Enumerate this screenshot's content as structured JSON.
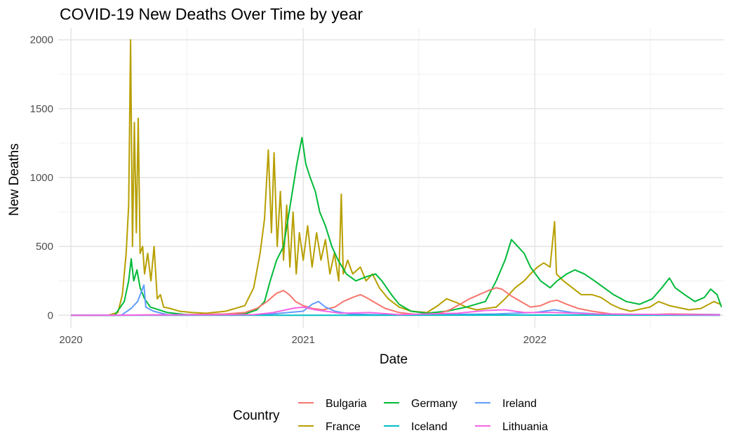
{
  "chart_data": {
    "type": "line",
    "title": "COVID-19 New Deaths Over Time by year",
    "xlabel": "Date",
    "ylabel": "New Deaths",
    "x_ticks": [
      "2020",
      "2021",
      "2022"
    ],
    "y_ticks": [
      "0",
      "500",
      "1000",
      "1500",
      "2000"
    ],
    "xlim": [
      "2019-12-12",
      "2022-10-25"
    ],
    "ylim": [
      -95,
      2085
    ],
    "grid": true,
    "legend_title": "Country",
    "legend_position": "bottom",
    "series": [
      {
        "name": "France",
        "color": "#B79F00",
        "points": [
          [
            "2020-01-01",
            0
          ],
          [
            "2020-02-28",
            0
          ],
          [
            "2020-03-15",
            20
          ],
          [
            "2020-03-22",
            150
          ],
          [
            "2020-03-28",
            450
          ],
          [
            "2020-04-01",
            800
          ],
          [
            "2020-04-04",
            2000
          ],
          [
            "2020-04-07",
            500
          ],
          [
            "2020-04-10",
            1400
          ],
          [
            "2020-04-13",
            600
          ],
          [
            "2020-04-16",
            1430
          ],
          [
            "2020-04-19",
            450
          ],
          [
            "2020-04-23",
            500
          ],
          [
            "2020-04-26",
            300
          ],
          [
            "2020-05-01",
            450
          ],
          [
            "2020-05-06",
            250
          ],
          [
            "2020-05-11",
            500
          ],
          [
            "2020-05-16",
            120
          ],
          [
            "2020-05-21",
            150
          ],
          [
            "2020-05-26",
            60
          ],
          [
            "2020-06-05",
            50
          ],
          [
            "2020-06-20",
            30
          ],
          [
            "2020-07-10",
            20
          ],
          [
            "2020-08-01",
            15
          ],
          [
            "2020-09-01",
            30
          ],
          [
            "2020-10-01",
            70
          ],
          [
            "2020-10-15",
            200
          ],
          [
            "2020-10-25",
            450
          ],
          [
            "2020-11-01",
            700
          ],
          [
            "2020-11-07",
            1200
          ],
          [
            "2020-11-12",
            600
          ],
          [
            "2020-11-16",
            1180
          ],
          [
            "2020-11-21",
            500
          ],
          [
            "2020-11-26",
            900
          ],
          [
            "2020-12-01",
            400
          ],
          [
            "2020-12-06",
            800
          ],
          [
            "2020-12-11",
            350
          ],
          [
            "2020-12-16",
            750
          ],
          [
            "2020-12-21",
            300
          ],
          [
            "2020-12-26",
            600
          ],
          [
            "2021-01-01",
            400
          ],
          [
            "2021-01-08",
            650
          ],
          [
            "2021-01-15",
            350
          ],
          [
            "2021-01-22",
            600
          ],
          [
            "2021-01-29",
            400
          ],
          [
            "2021-02-05",
            550
          ],
          [
            "2021-02-12",
            300
          ],
          [
            "2021-02-19",
            450
          ],
          [
            "2021-02-26",
            250
          ],
          [
            "2021-03-02",
            880
          ],
          [
            "2021-03-05",
            300
          ],
          [
            "2021-03-12",
            400
          ],
          [
            "2021-03-20",
            300
          ],
          [
            "2021-04-01",
            350
          ],
          [
            "2021-04-10",
            250
          ],
          [
            "2021-04-20",
            300
          ],
          [
            "2021-05-01",
            200
          ],
          [
            "2021-05-15",
            120
          ],
          [
            "2021-06-01",
            60
          ],
          [
            "2021-06-20",
            30
          ],
          [
            "2021-07-15",
            20
          ],
          [
            "2021-08-01",
            70
          ],
          [
            "2021-08-15",
            120
          ],
          [
            "2021-09-01",
            90
          ],
          [
            "2021-09-15",
            60
          ],
          [
            "2021-10-01",
            40
          ],
          [
            "2021-11-01",
            60
          ],
          [
            "2021-11-15",
            120
          ],
          [
            "2021-12-01",
            200
          ],
          [
            "2021-12-15",
            250
          ],
          [
            "2021-12-25",
            300
          ],
          [
            "2022-01-05",
            350
          ],
          [
            "2022-01-15",
            380
          ],
          [
            "2022-01-25",
            350
          ],
          [
            "2022-02-01",
            680
          ],
          [
            "2022-02-04",
            300
          ],
          [
            "2022-02-15",
            250
          ],
          [
            "2022-03-01",
            200
          ],
          [
            "2022-03-15",
            150
          ],
          [
            "2022-04-01",
            150
          ],
          [
            "2022-04-15",
            130
          ],
          [
            "2022-05-01",
            80
          ],
          [
            "2022-05-15",
            50
          ],
          [
            "2022-06-01",
            30
          ],
          [
            "2022-07-01",
            60
          ],
          [
            "2022-07-15",
            100
          ],
          [
            "2022-08-01",
            70
          ],
          [
            "2022-09-01",
            40
          ],
          [
            "2022-09-20",
            50
          ],
          [
            "2022-10-10",
            100
          ],
          [
            "2022-10-20",
            80
          ]
        ]
      },
      {
        "name": "Germany",
        "color": "#00BA38",
        "points": [
          [
            "2020-01-01",
            0
          ],
          [
            "2020-03-10",
            0
          ],
          [
            "2020-03-25",
            100
          ],
          [
            "2020-04-01",
            250
          ],
          [
            "2020-04-05",
            410
          ],
          [
            "2020-04-09",
            250
          ],
          [
            "2020-04-14",
            330
          ],
          [
            "2020-04-19",
            200
          ],
          [
            "2020-04-26",
            120
          ],
          [
            "2020-05-05",
            60
          ],
          [
            "2020-06-01",
            20
          ],
          [
            "2020-07-01",
            5
          ],
          [
            "2020-09-01",
            5
          ],
          [
            "2020-10-01",
            10
          ],
          [
            "2020-10-20",
            40
          ],
          [
            "2020-11-01",
            100
          ],
          [
            "2020-11-10",
            250
          ],
          [
            "2020-11-20",
            400
          ],
          [
            "2020-12-01",
            500
          ],
          [
            "2020-12-08",
            700
          ],
          [
            "2020-12-15",
            900
          ],
          [
            "2020-12-22",
            1100
          ],
          [
            "2020-12-30",
            1290
          ],
          [
            "2021-01-05",
            1100
          ],
          [
            "2021-01-12",
            1000
          ],
          [
            "2021-01-20",
            900
          ],
          [
            "2021-01-27",
            750
          ],
          [
            "2021-02-05",
            650
          ],
          [
            "2021-02-15",
            500
          ],
          [
            "2021-02-25",
            400
          ],
          [
            "2021-03-10",
            300
          ],
          [
            "2021-03-25",
            250
          ],
          [
            "2021-04-10",
            280
          ],
          [
            "2021-04-25",
            300
          ],
          [
            "2021-05-05",
            250
          ],
          [
            "2021-05-20",
            150
          ],
          [
            "2021-06-01",
            80
          ],
          [
            "2021-06-20",
            30
          ],
          [
            "2021-07-15",
            15
          ],
          [
            "2021-08-15",
            30
          ],
          [
            "2021-09-15",
            60
          ],
          [
            "2021-10-15",
            100
          ],
          [
            "2021-11-01",
            250
          ],
          [
            "2021-11-15",
            400
          ],
          [
            "2021-11-25",
            550
          ],
          [
            "2021-12-05",
            500
          ],
          [
            "2021-12-15",
            450
          ],
          [
            "2021-12-25",
            350
          ],
          [
            "2022-01-10",
            250
          ],
          [
            "2022-01-25",
            200
          ],
          [
            "2022-02-05",
            250
          ],
          [
            "2022-02-20",
            300
          ],
          [
            "2022-03-05",
            330
          ],
          [
            "2022-03-20",
            300
          ],
          [
            "2022-04-05",
            250
          ],
          [
            "2022-04-20",
            200
          ],
          [
            "2022-05-05",
            150
          ],
          [
            "2022-05-25",
            100
          ],
          [
            "2022-06-15",
            80
          ],
          [
            "2022-07-05",
            120
          ],
          [
            "2022-07-20",
            200
          ],
          [
            "2022-08-01",
            270
          ],
          [
            "2022-08-10",
            200
          ],
          [
            "2022-08-25",
            150
          ],
          [
            "2022-09-10",
            100
          ],
          [
            "2022-09-25",
            130
          ],
          [
            "2022-10-05",
            190
          ],
          [
            "2022-10-15",
            150
          ],
          [
            "2022-10-22",
            60
          ]
        ]
      },
      {
        "name": "Bulgaria",
        "color": "#F8766D",
        "points": [
          [
            "2020-01-01",
            0
          ],
          [
            "2020-03-15",
            0
          ],
          [
            "2020-05-01",
            3
          ],
          [
            "2020-07-01",
            5
          ],
          [
            "2020-09-01",
            10
          ],
          [
            "2020-10-01",
            20
          ],
          [
            "2020-10-20",
            50
          ],
          [
            "2020-11-05",
            100
          ],
          [
            "2020-11-20",
            160
          ],
          [
            "2020-12-01",
            180
          ],
          [
            "2020-12-10",
            150
          ],
          [
            "2020-12-20",
            100
          ],
          [
            "2021-01-01",
            70
          ],
          [
            "2021-01-15",
            50
          ],
          [
            "2021-02-01",
            40
          ],
          [
            "2021-02-20",
            60
          ],
          [
            "2021-03-05",
            100
          ],
          [
            "2021-03-20",
            130
          ],
          [
            "2021-04-01",
            150
          ],
          [
            "2021-04-10",
            130
          ],
          [
            "2021-04-25",
            90
          ],
          [
            "2021-05-10",
            50
          ],
          [
            "2021-06-01",
            20
          ],
          [
            "2021-07-01",
            5
          ],
          [
            "2021-08-01",
            10
          ],
          [
            "2021-08-20",
            40
          ],
          [
            "2021-09-05",
            80
          ],
          [
            "2021-09-20",
            120
          ],
          [
            "2021-10-05",
            150
          ],
          [
            "2021-10-20",
            180
          ],
          [
            "2021-11-01",
            200
          ],
          [
            "2021-11-10",
            190
          ],
          [
            "2021-11-25",
            140
          ],
          [
            "2021-12-10",
            100
          ],
          [
            "2021-12-25",
            60
          ],
          [
            "2022-01-10",
            70
          ],
          [
            "2022-01-25",
            100
          ],
          [
            "2022-02-05",
            110
          ],
          [
            "2022-02-20",
            80
          ],
          [
            "2022-03-10",
            50
          ],
          [
            "2022-04-01",
            30
          ],
          [
            "2022-05-01",
            10
          ],
          [
            "2022-07-01",
            5
          ],
          [
            "2022-08-01",
            10
          ],
          [
            "2022-10-20",
            5
          ]
        ]
      },
      {
        "name": "Ireland",
        "color": "#619CFF",
        "points": [
          [
            "2020-01-01",
            0
          ],
          [
            "2020-03-20",
            0
          ],
          [
            "2020-04-05",
            50
          ],
          [
            "2020-04-15",
            100
          ],
          [
            "2020-04-25",
            220
          ],
          [
            "2020-04-28",
            60
          ],
          [
            "2020-05-10",
            30
          ],
          [
            "2020-06-01",
            5
          ],
          [
            "2020-09-01",
            2
          ],
          [
            "2020-11-01",
            5
          ],
          [
            "2021-01-01",
            30
          ],
          [
            "2021-01-15",
            80
          ],
          [
            "2021-01-25",
            100
          ],
          [
            "2021-02-05",
            60
          ],
          [
            "2021-02-20",
            30
          ],
          [
            "2021-03-15",
            10
          ],
          [
            "2021-05-01",
            3
          ],
          [
            "2021-08-01",
            5
          ],
          [
            "2021-11-01",
            10
          ],
          [
            "2022-01-01",
            20
          ],
          [
            "2022-02-01",
            40
          ],
          [
            "2022-03-01",
            20
          ],
          [
            "2022-05-01",
            5
          ],
          [
            "2022-10-20",
            5
          ]
        ]
      },
      {
        "name": "Iceland",
        "color": "#00BFC4",
        "points": [
          [
            "2020-01-01",
            0
          ],
          [
            "2020-04-01",
            1
          ],
          [
            "2020-06-01",
            0
          ],
          [
            "2021-01-01",
            0
          ],
          [
            "2022-03-01",
            2
          ],
          [
            "2022-10-20",
            0
          ]
        ]
      },
      {
        "name": "Lithuania",
        "color": "#F564E3",
        "points": [
          [
            "2020-01-01",
            0
          ],
          [
            "2020-04-01",
            2
          ],
          [
            "2020-10-15",
            5
          ],
          [
            "2020-11-15",
            20
          ],
          [
            "2020-12-15",
            50
          ],
          [
            "2021-01-01",
            60
          ],
          [
            "2021-01-20",
            40
          ],
          [
            "2021-03-01",
            15
          ],
          [
            "2021-04-15",
            20
          ],
          [
            "2021-06-01",
            5
          ],
          [
            "2021-09-01",
            15
          ],
          [
            "2021-10-15",
            35
          ],
          [
            "2021-11-15",
            40
          ],
          [
            "2021-12-15",
            20
          ],
          [
            "2022-02-01",
            20
          ],
          [
            "2022-04-01",
            10
          ],
          [
            "2022-10-20",
            3
          ]
        ]
      }
    ]
  }
}
